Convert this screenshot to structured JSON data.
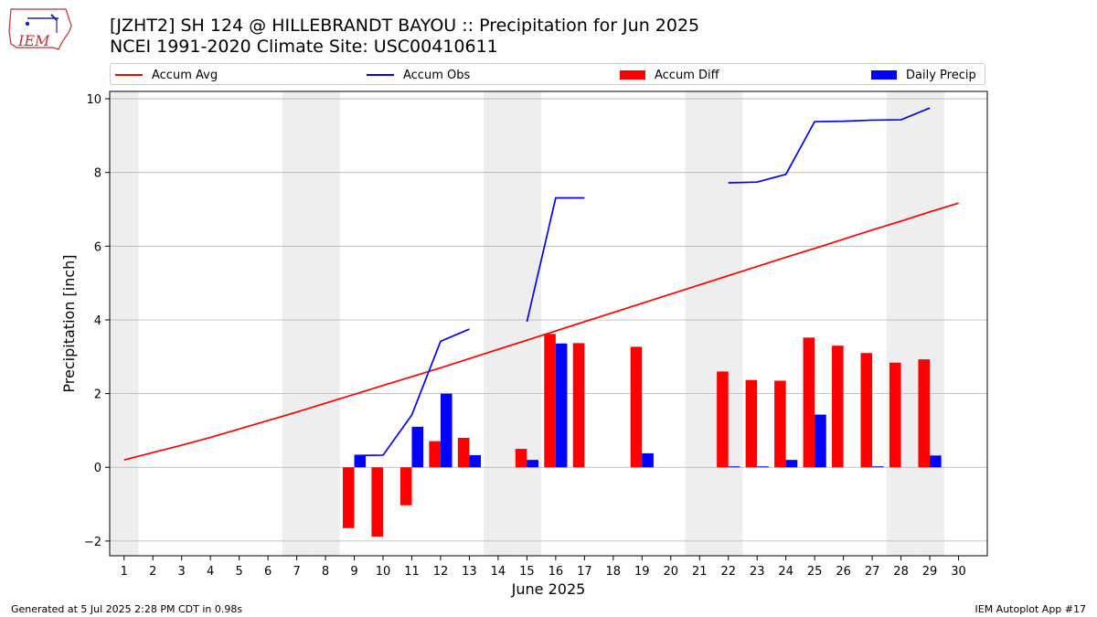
{
  "header": {
    "title_line1": "[JZHT2] SH 124 @ HILLEBRANDT BAYOU :: Precipitation for Jun 2025",
    "title_line2": "NCEI 1991-2020 Climate Site: USC00410611",
    "logo_text": "IEM"
  },
  "footer": {
    "generated": "Generated at 5 Jul 2025 2:28 PM CDT in 0.98s",
    "app": "IEM Autoplot App #17"
  },
  "colors": {
    "avg": "#ff0000",
    "obs": "#0000ff",
    "diff": "#ff0000",
    "daily": "#0000ff",
    "weekend_shade": "#eeeeee",
    "grid": "#b0b0b0"
  },
  "chart_data": {
    "type": "bar",
    "xlabel": "June 2025",
    "ylabel": "Precipitation [inch]",
    "xlim": [
      0.5,
      31
    ],
    "ylim": [
      -2.4,
      10.2
    ],
    "grid": "horizontal",
    "legend_position": "top",
    "legend": [
      "Accum Avg",
      "Accum Obs",
      "Accum Diff",
      "Daily Precip"
    ],
    "x": [
      1,
      2,
      3,
      4,
      5,
      6,
      7,
      8,
      9,
      10,
      11,
      12,
      13,
      14,
      15,
      16,
      17,
      18,
      19,
      20,
      21,
      22,
      23,
      24,
      25,
      26,
      27,
      28,
      29,
      30
    ],
    "x_tick_labels": [
      "1",
      "2",
      "3",
      "4",
      "5",
      "6",
      "7",
      "8",
      "9",
      "10",
      "11",
      "12",
      "13",
      "14",
      "15",
      "16",
      "17",
      "18",
      "19",
      "20",
      "21",
      "22",
      "23",
      "24",
      "25",
      "26",
      "27",
      "28",
      "29",
      "30"
    ],
    "y_ticks": [
      -2,
      0,
      2,
      4,
      6,
      8,
      10
    ],
    "y_tick_labels": [
      "−2",
      "0",
      "2",
      "4",
      "6",
      "8",
      "10"
    ],
    "weekend_days": [
      1,
      7,
      8,
      14,
      15,
      21,
      22,
      28,
      29
    ],
    "series": [
      {
        "name": "Accum Avg",
        "kind": "line",
        "values": [
          0.2,
          0.4,
          0.6,
          0.81,
          1.04,
          1.27,
          1.5,
          1.74,
          1.98,
          2.22,
          2.46,
          2.7,
          2.95,
          3.2,
          3.45,
          3.7,
          3.95,
          4.2,
          4.45,
          4.7,
          4.95,
          5.2,
          5.45,
          5.7,
          5.94,
          6.19,
          6.44,
          6.68,
          6.93,
          7.17
        ]
      },
      {
        "name": "Accum Obs",
        "kind": "line",
        "values": [
          null,
          null,
          null,
          null,
          null,
          null,
          null,
          null,
          0.32,
          0.33,
          1.42,
          3.42,
          3.75,
          null,
          3.95,
          7.31,
          7.31,
          null,
          null,
          null,
          null,
          7.72,
          7.74,
          7.95,
          9.38,
          9.39,
          9.42,
          9.43,
          9.75,
          null
        ]
      },
      {
        "name": "Accum Diff",
        "kind": "bar",
        "values": [
          null,
          null,
          null,
          null,
          null,
          null,
          null,
          null,
          -1.65,
          -1.88,
          -1.03,
          0.71,
          0.8,
          null,
          0.5,
          3.62,
          3.37,
          null,
          3.27,
          null,
          null,
          2.6,
          2.37,
          2.35,
          3.52,
          3.3,
          3.1,
          2.84,
          2.93,
          null
        ]
      },
      {
        "name": "Daily Precip",
        "kind": "bar",
        "values": [
          null,
          null,
          null,
          null,
          null,
          null,
          null,
          null,
          0.32,
          0.0,
          1.1,
          2.0,
          0.33,
          null,
          0.2,
          3.36,
          0.0,
          null,
          0.38,
          null,
          null,
          0.02,
          0.02,
          0.2,
          1.43,
          0.0,
          0.02,
          0.0,
          0.32,
          null
        ]
      }
    ]
  }
}
